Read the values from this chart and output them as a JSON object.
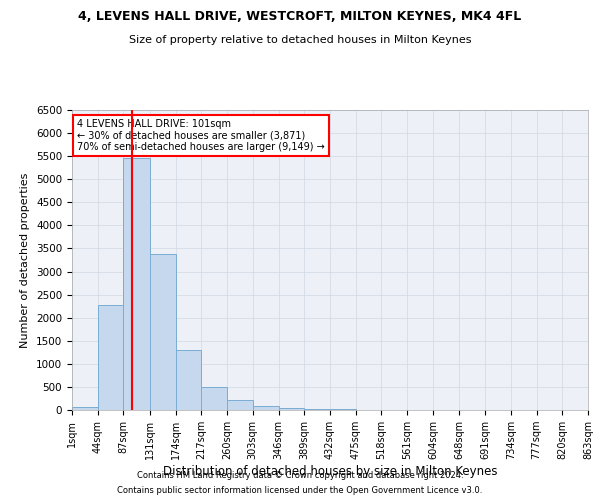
{
  "title1": "4, LEVENS HALL DRIVE, WESTCROFT, MILTON KEYNES, MK4 4FL",
  "title2": "Size of property relative to detached houses in Milton Keynes",
  "xlabel": "Distribution of detached houses by size in Milton Keynes",
  "ylabel": "Number of detached properties",
  "bar_color": "#c5d8ee",
  "bar_edge_color": "#7aadd4",
  "grid_color": "#d0d8e4",
  "bin_edges": [
    1,
    44,
    87,
    131,
    174,
    217,
    260,
    303,
    346,
    389,
    432,
    475,
    518,
    561,
    604,
    648,
    691,
    734,
    777,
    820,
    863
  ],
  "counts": [
    75,
    2280,
    5450,
    3380,
    1310,
    490,
    210,
    90,
    50,
    30,
    15,
    10,
    8,
    5,
    4,
    3,
    2,
    1,
    1,
    0
  ],
  "property_size": 101,
  "vline_color": "red",
  "annotation_text": "4 LEVENS HALL DRIVE: 101sqm\n← 30% of detached houses are smaller (3,871)\n70% of semi-detached houses are larger (9,149) →",
  "ylim": [
    0,
    6500
  ],
  "yticks": [
    0,
    500,
    1000,
    1500,
    2000,
    2500,
    3000,
    3500,
    4000,
    4500,
    5000,
    5500,
    6000,
    6500
  ],
  "footer1": "Contains HM Land Registry data © Crown copyright and database right 2024.",
  "footer2": "Contains public sector information licensed under the Open Government Licence v3.0.",
  "bg_color": "#edf1f7"
}
